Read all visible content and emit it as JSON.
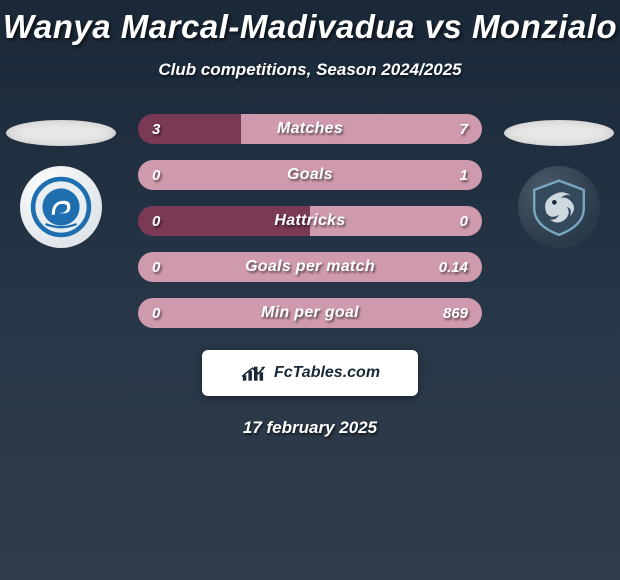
{
  "title": "Wanya Marcal-Madivadua vs Monzialo",
  "subtitle": "Club competitions, Season 2024/2025",
  "date": "17 february 2025",
  "logo_text": "FcTables.com",
  "colors": {
    "bar_dark": "#7a3a56",
    "bar_light": "#cf9aad",
    "bar_equal_left": "#7a3a56",
    "bar_equal_right": "#cf9aad",
    "text": "#ffffff",
    "badge_left_stroke": "#1f6fb0",
    "badge_left_fill": "#e8eef2",
    "badge_right_stroke": "#7aa8c4",
    "badge_right_fill": "#344a5c"
  },
  "row_style": {
    "height": 30,
    "gap": 16,
    "radius": 15,
    "label_fontsize": 16,
    "value_fontsize": 15
  },
  "rows": [
    {
      "label": "Matches",
      "left": "3",
      "right": "7",
      "left_pct": 30
    },
    {
      "label": "Goals",
      "left": "0",
      "right": "1",
      "left_pct": 0
    },
    {
      "label": "Hattricks",
      "left": "0",
      "right": "0",
      "left_pct": 50
    },
    {
      "label": "Goals per match",
      "left": "0",
      "right": "0.14",
      "left_pct": 0
    },
    {
      "label": "Min per goal",
      "left": "0",
      "right": "869",
      "left_pct": 0
    }
  ]
}
